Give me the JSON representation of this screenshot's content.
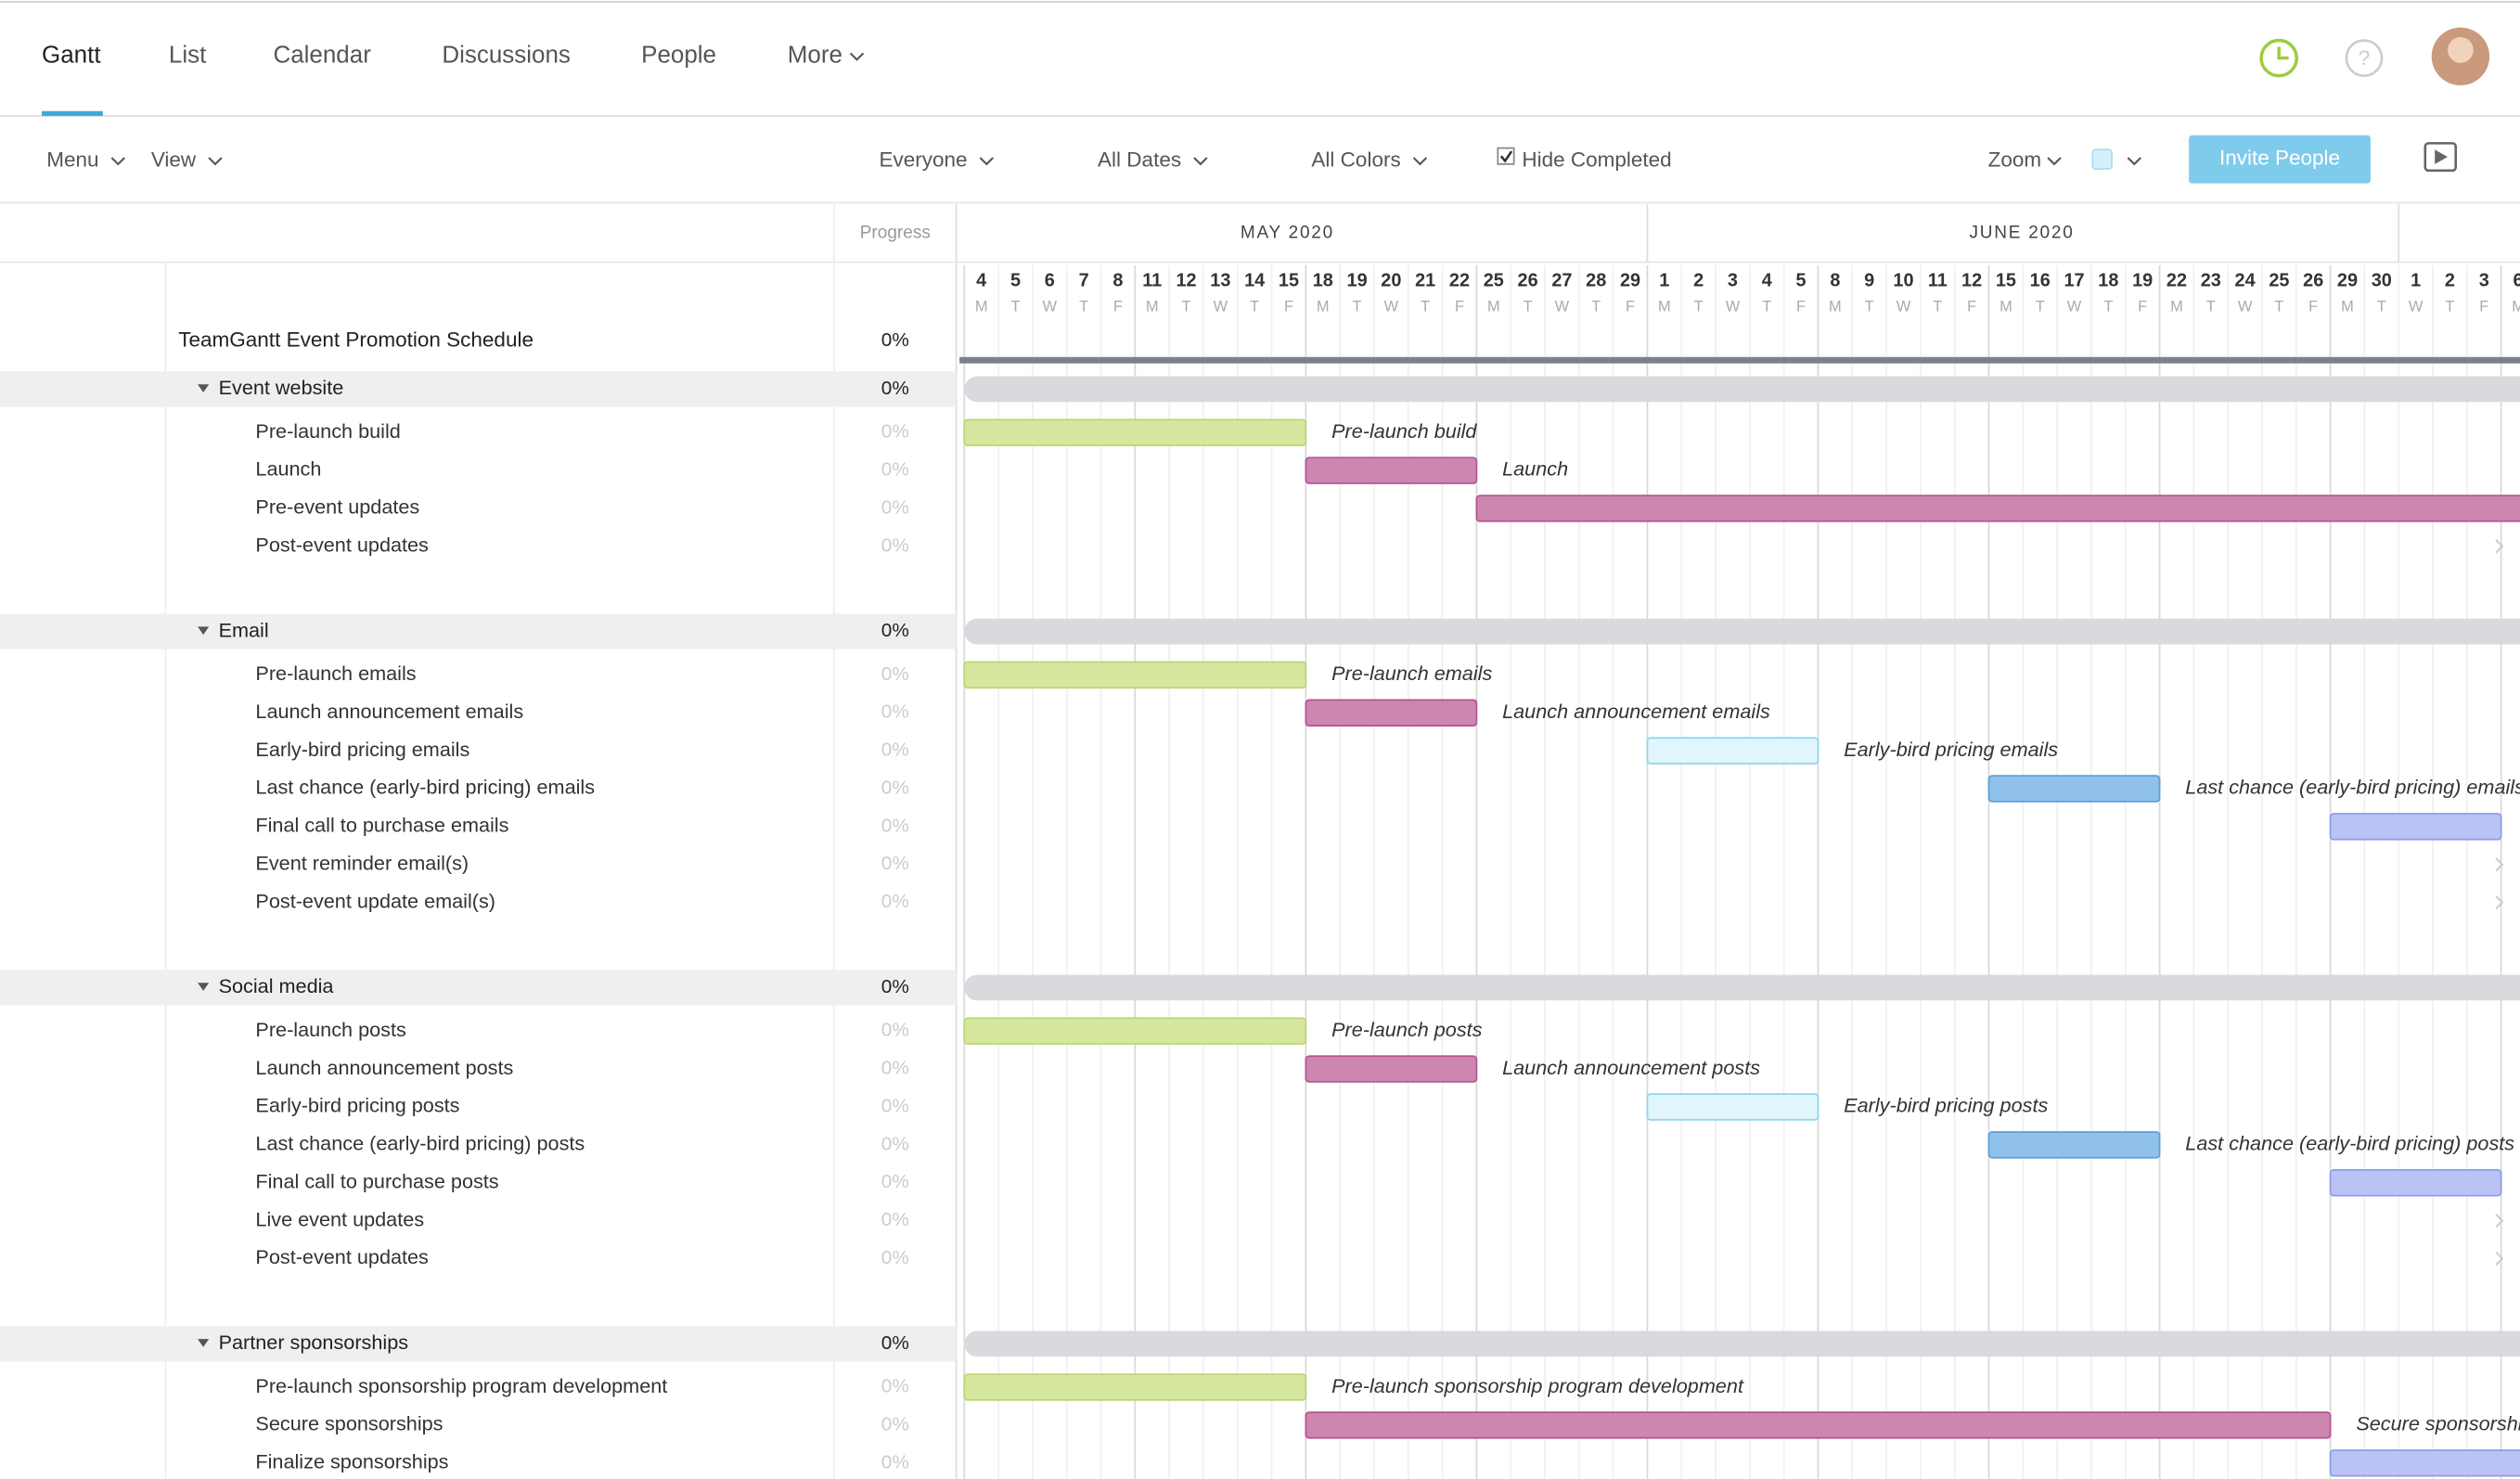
{
  "nav": {
    "tabs": [
      "Gantt",
      "List",
      "Calendar",
      "Discussions",
      "People",
      "More"
    ]
  },
  "toolbar": {
    "menu": "Menu",
    "view": "View",
    "filters": [
      "Everyone",
      "All Dates",
      "All Colors"
    ],
    "hide_completed": "Hide Completed",
    "zoom": "Zoom",
    "invite": "Invite People"
  },
  "timeline": {
    "progress_header": "Progress",
    "months": [
      "MAY 2020",
      "JUNE 2020"
    ],
    "days": [
      "4",
      "5",
      "6",
      "7",
      "8",
      "11",
      "12",
      "13",
      "14",
      "15",
      "18",
      "19",
      "20",
      "21",
      "22",
      "25",
      "26",
      "27",
      "28",
      "29",
      "1",
      "2",
      "3",
      "4",
      "5",
      "8",
      "9",
      "10",
      "11",
      "12",
      "15",
      "16",
      "17",
      "18",
      "19",
      "22",
      "23",
      "24",
      "25",
      "26",
      "29",
      "30",
      "1",
      "2",
      "3",
      "6"
    ],
    "weekdays": [
      "M",
      "T",
      "W",
      "T",
      "F",
      "M",
      "T",
      "W",
      "T",
      "F",
      "M",
      "T",
      "W",
      "T",
      "F",
      "M",
      "T",
      "W",
      "T",
      "F",
      "M",
      "T",
      "W",
      "T",
      "F",
      "M",
      "T",
      "W",
      "T",
      "F",
      "M",
      "T",
      "W",
      "T",
      "F",
      "M",
      "T",
      "W",
      "T",
      "F",
      "M",
      "T",
      "W",
      "T",
      "F",
      "M"
    ]
  },
  "project": {
    "name": "TeamGantt Event Promotion Schedule",
    "progress": "0%",
    "groups": [
      {
        "name": "Event website",
        "progress": "0%",
        "tasks": [
          {
            "name": "Pre-launch build",
            "progress": "0%"
          },
          {
            "name": "Launch",
            "progress": "0%"
          },
          {
            "name": "Pre-event updates",
            "progress": "0%"
          },
          {
            "name": "Post-event updates",
            "progress": "0%"
          }
        ]
      },
      {
        "name": "Email",
        "progress": "0%",
        "tasks": [
          {
            "name": "Pre-launch emails",
            "progress": "0%"
          },
          {
            "name": "Launch announcement emails",
            "progress": "0%"
          },
          {
            "name": "Early-bird pricing emails",
            "progress": "0%"
          },
          {
            "name": "Last chance (early-bird pricing) emails",
            "progress": "0%"
          },
          {
            "name": "Final call to purchase emails",
            "progress": "0%"
          },
          {
            "name": "Event reminder email(s)",
            "progress": "0%"
          },
          {
            "name": "Post-event update email(s)",
            "progress": "0%"
          }
        ]
      },
      {
        "name": "Social media",
        "progress": "0%",
        "tasks": [
          {
            "name": "Pre-launch posts",
            "progress": "0%"
          },
          {
            "name": "Launch announcement posts",
            "progress": "0%"
          },
          {
            "name": "Early-bird pricing posts",
            "progress": "0%"
          },
          {
            "name": "Last chance (early-bird pricing) posts",
            "progress": "0%"
          },
          {
            "name": "Final call to purchase posts",
            "progress": "0%"
          },
          {
            "name": "Live event updates",
            "progress": "0%"
          },
          {
            "name": "Post-event updates",
            "progress": "0%"
          }
        ]
      },
      {
        "name": "Partner sponsorships",
        "progress": "0%",
        "tasks": [
          {
            "name": "Pre-launch sponsorship program development",
            "progress": "0%"
          },
          {
            "name": "Secure sponsorships",
            "progress": "0%"
          },
          {
            "name": "Finalize sponsorships",
            "progress": "0%"
          }
        ]
      }
    ]
  }
}
